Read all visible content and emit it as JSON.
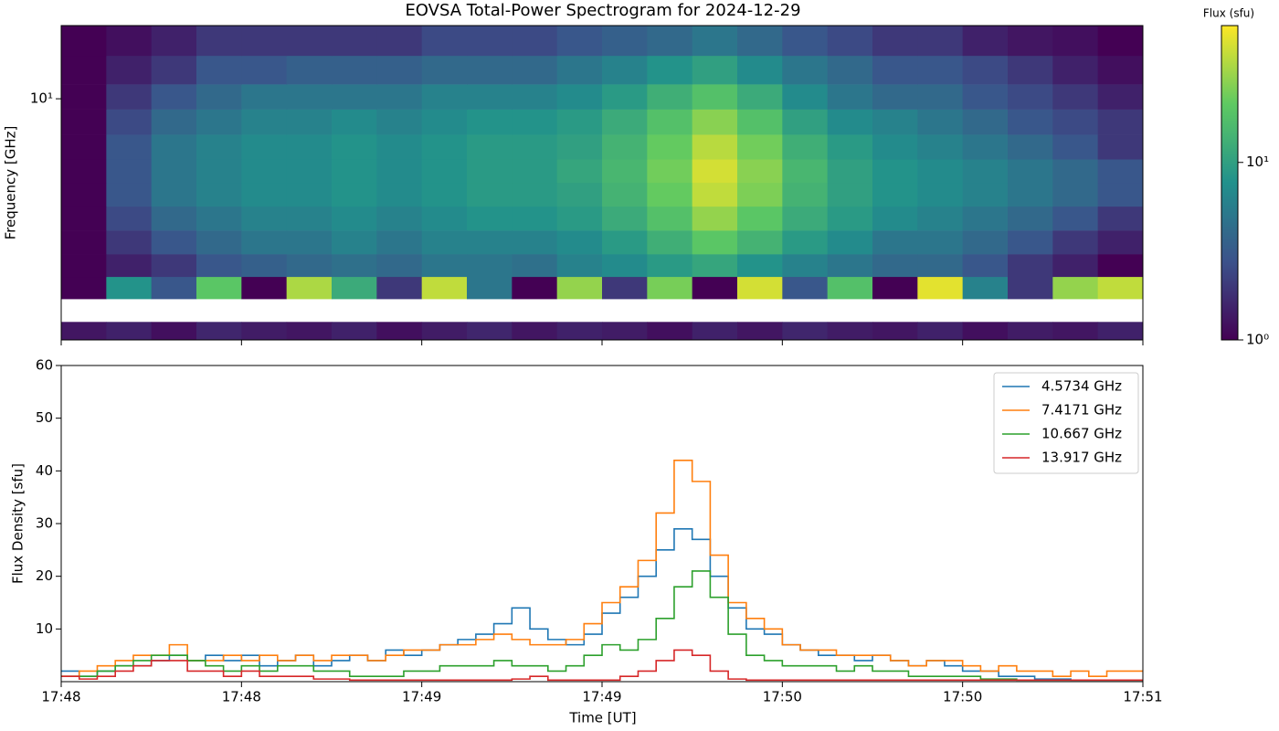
{
  "chart_data": [
    {
      "type": "heatmap",
      "title": "EOVSA Total-Power Spectrogram for 2024-12-29",
      "ylabel": "Frequency [GHz]",
      "ylog": true,
      "ylim": [
        2.41,
        15.4
      ],
      "yticks": [
        {
          "value": 10,
          "label": "10¹"
        }
      ],
      "xlim": [
        0,
        180
      ],
      "xticks": [
        0,
        30,
        60,
        90,
        120,
        150,
        180
      ],
      "colormap": "viridis",
      "colorbar": {
        "label": "Flux (sfu)",
        "log": true,
        "lim": [
          1,
          59
        ],
        "ticks": [
          {
            "value": 1,
            "label": "10⁰"
          },
          {
            "value": 10,
            "label": "10¹"
          }
        ]
      },
      "xbins": [
        0,
        7.5,
        15,
        22.5,
        30,
        37.5,
        45,
        52.5,
        60,
        67.5,
        75,
        82.5,
        90,
        97.5,
        105,
        112.5,
        120,
        127.5,
        135,
        142.5,
        150,
        157.5,
        165,
        172.5,
        180
      ],
      "ybins": [
        2.41,
        2.68,
        3.07,
        3.5,
        4.0,
        4.6,
        5.3,
        6.1,
        7.0,
        8.1,
        9.4,
        10.9,
        12.9,
        15.4
      ],
      "z": [
        [
          1.3,
          1.5,
          1.2,
          1.6,
          1.4,
          1.3,
          1.5,
          1.2,
          1.4,
          1.6,
          1.3,
          1.5,
          1.4,
          1.2,
          1.5,
          1.3,
          1.6,
          1.4,
          1.3,
          1.5,
          1.2,
          1.4,
          1.3,
          1.5
        ],
        [
          null,
          null,
          null,
          null,
          null,
          null,
          null,
          null,
          null,
          null,
          null,
          null,
          null,
          null,
          null,
          null,
          null,
          null,
          null,
          null,
          null,
          null,
          null,
          null
        ],
        [
          1,
          8,
          3,
          20,
          1,
          35,
          12,
          2,
          40,
          5,
          1,
          30,
          2,
          25,
          1,
          45,
          3,
          18,
          1,
          50,
          6,
          2,
          30,
          40
        ],
        [
          1,
          1.5,
          2,
          3,
          3.5,
          4,
          4.5,
          4,
          5,
          5,
          4.5,
          6,
          7,
          9,
          11,
          8,
          6,
          5,
          4,
          4,
          3,
          2,
          1.5,
          1
        ],
        [
          1,
          2,
          3,
          4,
          5,
          5,
          6,
          5,
          6,
          6,
          6,
          7,
          9,
          13,
          20,
          14,
          9,
          7,
          5,
          5,
          4,
          3,
          2,
          1.5
        ],
        [
          1,
          2.5,
          4,
          5,
          6,
          6,
          7,
          6,
          7,
          8,
          8,
          9,
          12,
          18,
          30,
          20,
          12,
          9,
          7,
          6,
          5,
          4,
          3,
          2
        ],
        [
          1,
          3,
          5,
          6,
          7,
          7,
          8,
          7,
          8,
          9,
          9,
          10,
          14,
          22,
          40,
          26,
          14,
          10,
          8,
          7,
          6,
          5,
          4,
          3
        ],
        [
          1,
          3,
          5,
          6,
          7,
          7,
          8,
          7,
          8,
          9,
          9,
          11,
          15,
          24,
          45,
          28,
          15,
          10,
          8,
          7,
          6,
          5,
          4,
          3
        ],
        [
          1,
          3,
          5,
          6,
          7,
          7,
          8,
          7,
          8,
          9,
          9,
          10,
          14,
          22,
          38,
          24,
          13,
          9,
          7,
          6,
          5,
          4,
          3,
          2
        ],
        [
          1,
          2.5,
          4,
          5,
          6,
          6,
          7,
          6,
          7,
          8,
          8,
          9,
          12,
          18,
          28,
          18,
          10,
          7,
          6,
          5,
          4,
          3,
          2.5,
          2
        ],
        [
          1,
          2,
          3,
          4,
          5,
          5,
          5,
          5,
          6,
          6,
          6,
          7,
          9,
          13,
          18,
          12,
          7,
          5,
          4,
          4,
          3,
          2.5,
          2,
          1.5
        ],
        [
          1,
          1.5,
          2,
          3,
          3,
          3.5,
          3.5,
          3.5,
          4,
          4,
          4,
          5,
          6,
          8,
          10,
          7,
          5,
          4,
          3,
          3,
          2.5,
          2,
          1.5,
          1.2
        ],
        [
          1,
          1.2,
          1.5,
          2,
          2,
          2,
          2,
          2,
          2.5,
          2.5,
          2.5,
          3,
          3.5,
          4,
          5,
          4,
          3,
          2.5,
          2,
          2,
          1.5,
          1.3,
          1.2,
          1
        ]
      ]
    },
    {
      "type": "line",
      "step": "post",
      "xlabel": "Time [UT]",
      "ylabel": "Flux Density [sfu]",
      "xlim": [
        0,
        180
      ],
      "xticks": [
        {
          "value": 0,
          "label": "17:48"
        },
        {
          "value": 30,
          "label": "17:48"
        },
        {
          "value": 60,
          "label": "17:49"
        },
        {
          "value": 90,
          "label": "17:49"
        },
        {
          "value": 120,
          "label": "17:50"
        },
        {
          "value": 150,
          "label": "17:50"
        },
        {
          "value": 180,
          "label": "17:51"
        }
      ],
      "ylim": [
        0,
        60
      ],
      "yticks": [
        10,
        20,
        30,
        40,
        50,
        60
      ],
      "legend": "upper right",
      "x": [
        0,
        3,
        6,
        9,
        12,
        15,
        18,
        21,
        24,
        27,
        30,
        33,
        36,
        39,
        42,
        45,
        48,
        51,
        54,
        57,
        60,
        63,
        66,
        69,
        72,
        75,
        78,
        81,
        84,
        87,
        90,
        93,
        96,
        99,
        102,
        105,
        108,
        111,
        114,
        117,
        120,
        123,
        126,
        129,
        132,
        135,
        138,
        141,
        144,
        147,
        150,
        153,
        156,
        159,
        162,
        165,
        168,
        171,
        174,
        177
      ],
      "series": [
        {
          "name": "4.5734 GHz",
          "color": "#1f77b4",
          "values": [
            2,
            1,
            2,
            3,
            3,
            4,
            5,
            4,
            5,
            4,
            5,
            3,
            4,
            5,
            3,
            4,
            5,
            4,
            6,
            5,
            6,
            7,
            8,
            9,
            11,
            14,
            10,
            8,
            7,
            9,
            13,
            16,
            20,
            25,
            29,
            27,
            20,
            14,
            10,
            9,
            7,
            6,
            5,
            5,
            4,
            5,
            4,
            3,
            4,
            3,
            2,
            2,
            1,
            1,
            0.5,
            0.5,
            0.3,
            0.3,
            0.3,
            0.3
          ]
        },
        {
          "name": "7.4171 GHz",
          "color": "#ff7f0e",
          "values": [
            1,
            2,
            3,
            4,
            5,
            5,
            7,
            4,
            4,
            5,
            4,
            5,
            4,
            5,
            4,
            5,
            5,
            4,
            5,
            6,
            6,
            7,
            7,
            8,
            9,
            8,
            7,
            7,
            8,
            11,
            15,
            18,
            23,
            32,
            42,
            38,
            24,
            15,
            12,
            10,
            7,
            6,
            6,
            5,
            5,
            5,
            4,
            3,
            4,
            4,
            3,
            2,
            3,
            2,
            2,
            1,
            2,
            1,
            2,
            2
          ]
        },
        {
          "name": "10.667 GHz",
          "color": "#2ca02c",
          "values": [
            1,
            1,
            2,
            3,
            4,
            5,
            5,
            4,
            3,
            2,
            3,
            2,
            3,
            3,
            2,
            2,
            1,
            1,
            1,
            2,
            2,
            3,
            3,
            3,
            4,
            3,
            3,
            2,
            3,
            5,
            7,
            6,
            8,
            12,
            18,
            21,
            16,
            9,
            5,
            4,
            3,
            3,
            3,
            2,
            3,
            2,
            2,
            1,
            1,
            1,
            1,
            0.5,
            0.5,
            0.3,
            0.3,
            0.3,
            0.3,
            0.3,
            0.3,
            0.3
          ]
        },
        {
          "name": "13.917 GHz",
          "color": "#d62728",
          "values": [
            1,
            0.5,
            1,
            2,
            3,
            4,
            4,
            2,
            2,
            1,
            2,
            1,
            1,
            1,
            0.5,
            0.5,
            0.3,
            0.3,
            0.3,
            0.3,
            0.3,
            0.3,
            0.3,
            0.3,
            0.3,
            0.5,
            1,
            0.3,
            0.3,
            0.3,
            0.3,
            1,
            2,
            4,
            6,
            5,
            2,
            0.5,
            0.3,
            0.3,
            0.3,
            0.3,
            0.3,
            0.3,
            0.3,
            0.3,
            0.3,
            0.3,
            0.3,
            0.3,
            0.3,
            0.3,
            0.3,
            0.3,
            0.3,
            0.3,
            0.3,
            0.3,
            0.3,
            0.3
          ]
        }
      ]
    }
  ]
}
